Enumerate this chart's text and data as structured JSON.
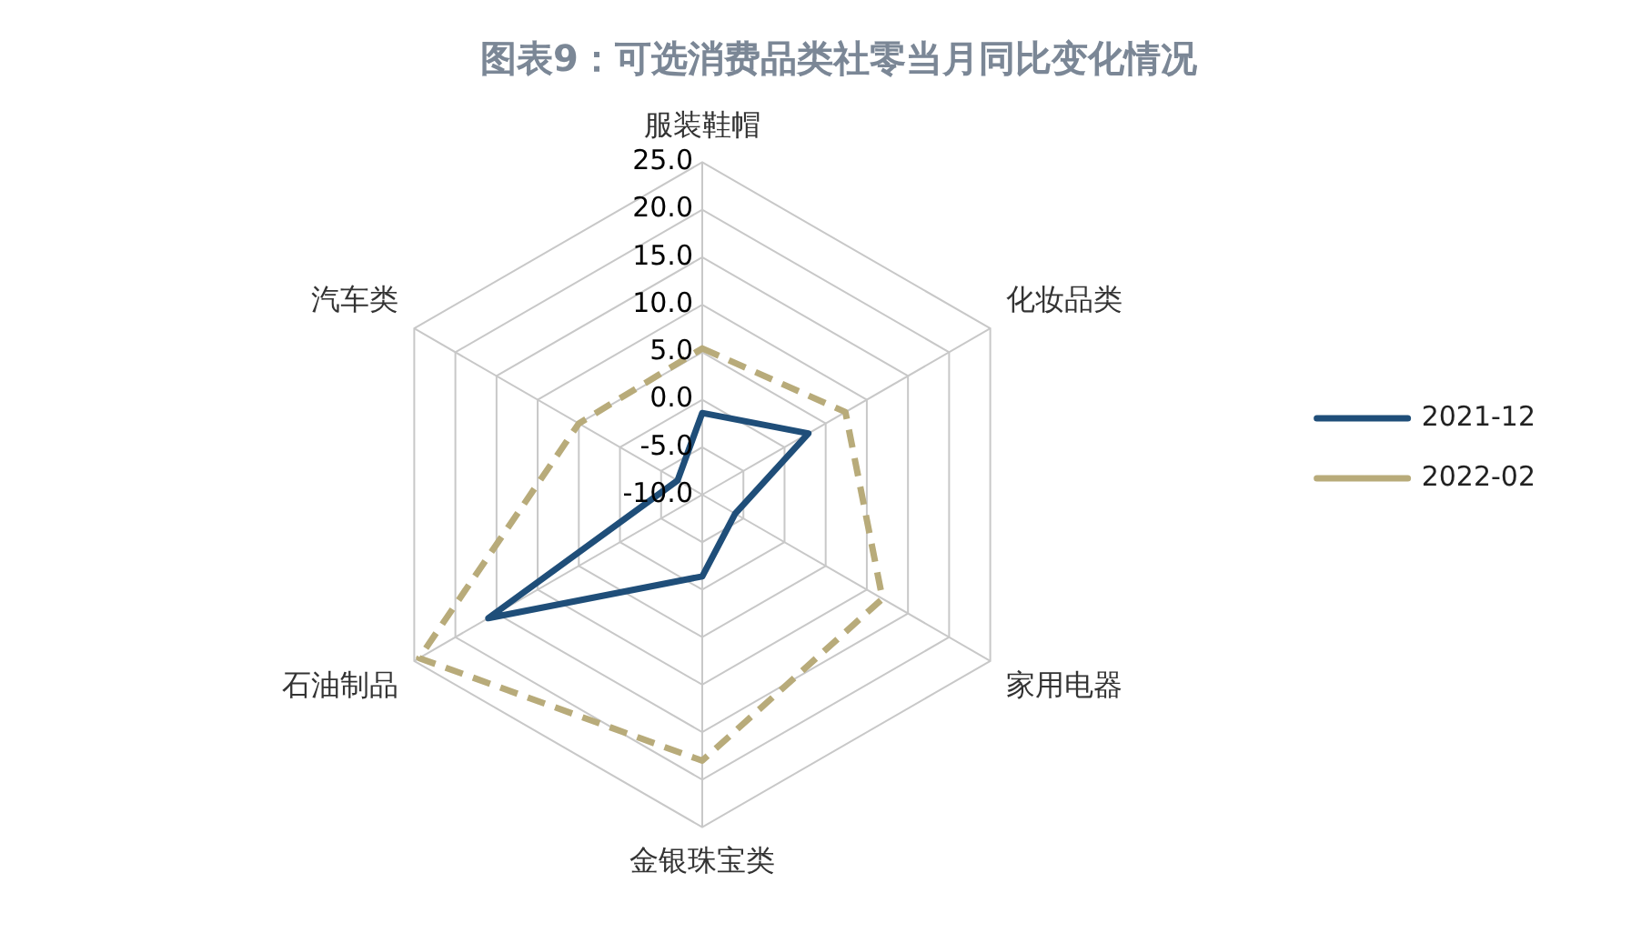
{
  "chart_data": {
    "type": "radar",
    "title": "图表9：可选消费品类社零当月同比变化情况",
    "categories": [
      "服装鞋帽",
      "化妆品类",
      "家用电器",
      "金银珠宝类",
      "石油制品",
      "汽车类"
    ],
    "series": [
      {
        "name": "2021-12",
        "color": "#1f4e79",
        "line_style": "solid",
        "values": [
          -1.4,
          2.9,
          -6,
          -1.4,
          16,
          -7
        ]
      },
      {
        "name": "2022-02",
        "color": "#b8ab7a",
        "line_style": "dashed",
        "values": [
          5.4,
          7.4,
          11.9,
          18,
          24.4,
          5
        ]
      }
    ],
    "ylim": [
      -10,
      25
    ],
    "yticks": [
      {
        "value": -10,
        "label": "-10.0"
      },
      {
        "value": -5,
        "label": "-5.0"
      },
      {
        "value": 0,
        "label": "0.0"
      },
      {
        "value": 5,
        "label": "5.0"
      },
      {
        "value": 10,
        "label": "10.0"
      },
      {
        "value": 15,
        "label": "15.0"
      },
      {
        "value": 20,
        "label": "20.0"
      },
      {
        "value": 25,
        "label": "25.0"
      }
    ],
    "grid": true,
    "legend": "right",
    "marker": "none"
  }
}
